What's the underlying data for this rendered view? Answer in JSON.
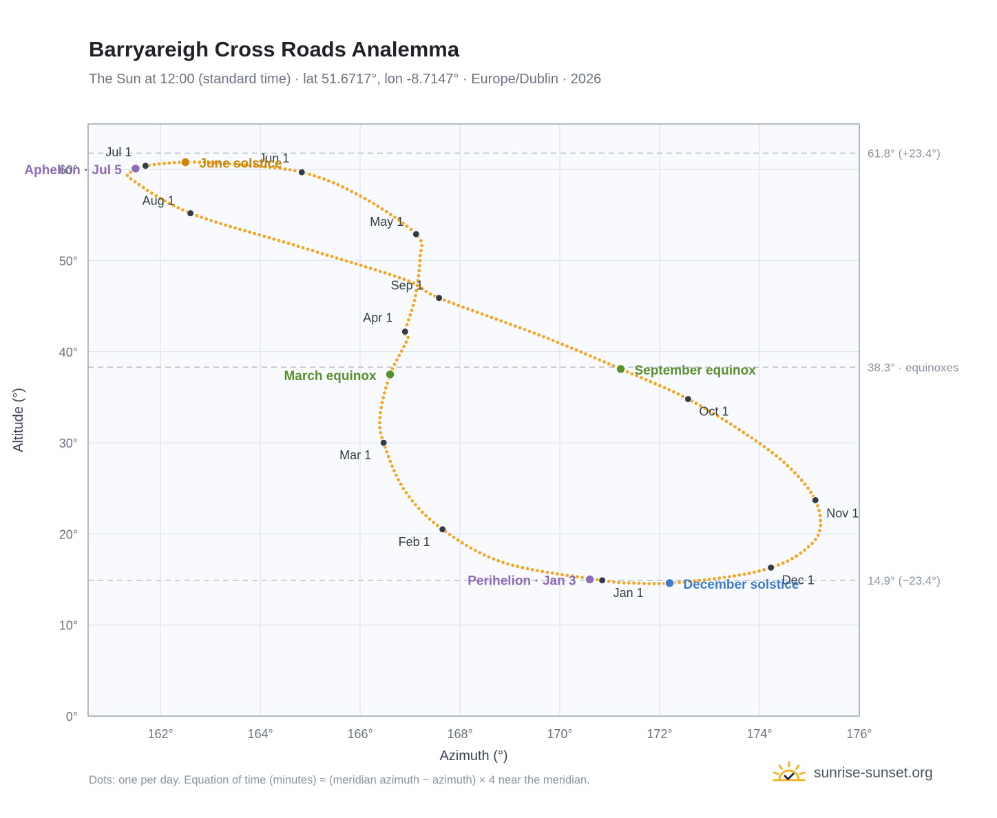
{
  "title": "Barryareigh Cross Roads Analemma",
  "subtitle": "The Sun at 12:00 (standard time) · lat 51.6717°, lon -8.7147° · Europe/Dublin · 2026",
  "footnote": "Dots: one per day. Equation of time (minutes) ≈ (meridian azimuth − azimuth) × 4 near the meridian.",
  "brand": {
    "text": "sunrise-sunset.org",
    "icon": "sun-logo-icon"
  },
  "colors": {
    "track": "#f2a626",
    "month_marker": "#343a46",
    "june_solstice": "#c9870d",
    "december_solstice": "#3d7cc9",
    "equinox": "#5a8f2f",
    "apsis": "#8e6bb5",
    "reference_line": "#b9bfc8",
    "grid": "#e4e8ee",
    "plot_bg": "#f8fafd",
    "frame": "#9aa5b4"
  },
  "chart_data": {
    "type": "scatter",
    "title": "Barryareigh Cross Roads Analemma",
    "xlabel": "Azimuth (°)",
    "ylabel": "Altitude (°)",
    "xlim": [
      160.55,
      176
    ],
    "ylim": [
      0,
      65
    ],
    "x_ticks": [
      162,
      164,
      166,
      168,
      170,
      172,
      174,
      176
    ],
    "y_ticks": [
      0,
      10,
      20,
      30,
      40,
      50,
      60
    ],
    "x_tick_suffix": "°",
    "y_tick_suffix": "°",
    "grid": true,
    "reference_lines": [
      {
        "y": 61.8,
        "label": "61.8° (+23.4°)"
      },
      {
        "y": 38.3,
        "label": "38.3° · equinoxes"
      },
      {
        "y": 14.9,
        "label": "14.9° (−23.4°)"
      }
    ],
    "daily_track": {
      "name": "one per day",
      "points": [
        [
          170.85,
          14.9
        ],
        [
          168.9,
          16.8
        ],
        [
          167.65,
          20.5
        ],
        [
          166.9,
          24.7
        ],
        [
          166.47,
          30.0
        ],
        [
          166.4,
          33.0
        ],
        [
          166.6,
          37.5
        ],
        [
          166.95,
          41.4
        ],
        [
          166.9,
          42.2
        ],
        [
          167.1,
          45.9
        ],
        [
          167.2,
          50.3
        ],
        [
          167.12,
          52.9
        ],
        [
          166.0,
          57.1
        ],
        [
          164.83,
          59.7
        ],
        [
          163.4,
          60.6
        ],
        [
          162.5,
          60.8
        ],
        [
          161.7,
          60.4
        ],
        [
          161.4,
          59.7
        ],
        [
          161.45,
          58.8
        ],
        [
          162.6,
          55.2
        ],
        [
          164.8,
          51.5
        ],
        [
          166.9,
          47.9
        ],
        [
          167.58,
          45.9
        ],
        [
          169.6,
          41.8
        ],
        [
          171.22,
          38.1
        ],
        [
          172.57,
          34.8
        ],
        [
          173.8,
          30.7
        ],
        [
          174.6,
          27.3
        ],
        [
          175.12,
          23.7
        ],
        [
          175.2,
          20.2
        ],
        [
          174.8,
          17.8
        ],
        [
          174.23,
          16.3
        ],
        [
          173.4,
          15.3
        ],
        [
          172.2,
          14.6
        ],
        [
          171.5,
          14.6
        ],
        [
          170.85,
          14.9
        ]
      ]
    },
    "month_markers": [
      {
        "label": "Jan 1",
        "x": 170.85,
        "y": 14.9
      },
      {
        "label": "Feb 1",
        "x": 167.65,
        "y": 20.5
      },
      {
        "label": "Mar 1",
        "x": 166.47,
        "y": 30.0
      },
      {
        "label": "Apr 1",
        "x": 166.9,
        "y": 42.2
      },
      {
        "label": "May 1",
        "x": 167.12,
        "y": 52.9
      },
      {
        "label": "Jun 1",
        "x": 164.83,
        "y": 59.7
      },
      {
        "label": "Jul 1",
        "x": 161.7,
        "y": 60.4
      },
      {
        "label": "Aug 1",
        "x": 162.6,
        "y": 55.2
      },
      {
        "label": "Sep 1",
        "x": 167.58,
        "y": 45.9
      },
      {
        "label": "Oct 1",
        "x": 172.57,
        "y": 34.8
      },
      {
        "label": "Nov 1",
        "x": 175.12,
        "y": 23.7
      },
      {
        "label": "Dec 1",
        "x": 174.23,
        "y": 16.3
      }
    ],
    "events": [
      {
        "label": "June solstice",
        "x": 162.5,
        "y": 60.8,
        "color_key": "june_solstice"
      },
      {
        "label": "December solstice",
        "x": 172.2,
        "y": 14.6,
        "color_key": "december_solstice"
      },
      {
        "label": "March equinox",
        "x": 166.6,
        "y": 37.5,
        "color_key": "equinox"
      },
      {
        "label": "September equinox",
        "x": 171.22,
        "y": 38.1,
        "color_key": "equinox"
      },
      {
        "label": "Aphelion · Jul 5",
        "x": 161.5,
        "y": 60.1,
        "color_key": "apsis"
      },
      {
        "label": "Perihelion · Jan 3",
        "x": 170.6,
        "y": 15.0,
        "color_key": "apsis"
      }
    ]
  }
}
